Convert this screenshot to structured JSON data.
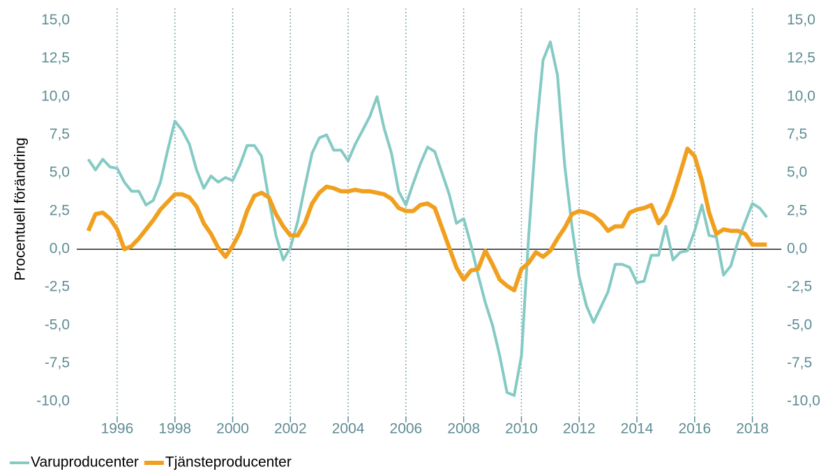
{
  "chart_data": {
    "type": "line",
    "y_label": "Procentuell förändring",
    "x": [
      1995,
      1995.25,
      1995.5,
      1995.75,
      1996,
      1996.25,
      1996.5,
      1996.75,
      1997,
      1997.25,
      1997.5,
      1997.75,
      1998,
      1998.25,
      1998.5,
      1998.75,
      1999,
      1999.25,
      1999.5,
      1999.75,
      2000,
      2000.25,
      2000.5,
      2000.75,
      2001,
      2001.25,
      2001.5,
      2001.75,
      2002,
      2002.25,
      2002.5,
      2002.75,
      2003,
      2003.25,
      2003.5,
      2003.75,
      2004,
      2004.25,
      2004.5,
      2004.75,
      2005,
      2005.25,
      2005.5,
      2005.75,
      2006,
      2006.25,
      2006.5,
      2006.75,
      2007,
      2007.25,
      2007.5,
      2007.75,
      2008,
      2008.25,
      2008.5,
      2008.75,
      2009,
      2009.25,
      2009.5,
      2009.75,
      2010,
      2010.25,
      2010.5,
      2010.75,
      2011,
      2011.25,
      2011.5,
      2011.75,
      2012,
      2012.25,
      2012.5,
      2012.75,
      2013,
      2013.25,
      2013.5,
      2013.75,
      2014,
      2014.25,
      2014.5,
      2014.75,
      2015,
      2015.25,
      2015.5,
      2015.75,
      2016,
      2016.25,
      2016.5,
      2016.75,
      2017,
      2017.25,
      2017.5,
      2017.75,
      2018,
      2018.25,
      2018.5
    ],
    "series": [
      {
        "name": "Varuproducenter",
        "color": "#85cac4",
        "width": 4,
        "values": [
          5.9,
          5.2,
          5.9,
          5.4,
          5.3,
          4.4,
          3.8,
          3.8,
          2.9,
          3.2,
          4.4,
          6.5,
          8.4,
          7.8,
          6.9,
          5.2,
          4.0,
          4.8,
          4.4,
          4.7,
          4.5,
          5.5,
          6.8,
          6.8,
          6.1,
          3.3,
          0.9,
          -0.7,
          0.1,
          1.8,
          4.1,
          6.3,
          7.3,
          7.5,
          6.5,
          6.5,
          5.8,
          6.9,
          7.8,
          8.7,
          10.0,
          7.9,
          6.3,
          3.8,
          2.9,
          4.3,
          5.6,
          6.7,
          6.4,
          5.0,
          3.6,
          1.7,
          2.0,
          0.3,
          -1.7,
          -3.5,
          -5.0,
          -7.0,
          -9.4,
          -9.6,
          -7.0,
          0.8,
          7.5,
          12.4,
          13.6,
          11.4,
          5.5,
          1.5,
          -1.8,
          -3.7,
          -4.8,
          -3.8,
          -2.8,
          -1.0,
          -1.0,
          -1.2,
          -2.2,
          -2.1,
          -0.4,
          -0.4,
          1.5,
          -0.7,
          -0.2,
          -0.1,
          1.2,
          2.9,
          0.9,
          0.8,
          -1.7,
          -1.1,
          0.5,
          1.8,
          3.0,
          2.7,
          2.1
        ]
      },
      {
        "name": "Tjänsteproducenter",
        "color": "#f0a01e",
        "width": 6,
        "values": [
          1.2,
          2.3,
          2.4,
          2.0,
          1.3,
          0.0,
          0.2,
          0.7,
          1.3,
          1.9,
          2.6,
          3.1,
          3.6,
          3.6,
          3.4,
          2.8,
          1.7,
          1.0,
          0.1,
          -0.5,
          0.2,
          1.1,
          2.5,
          3.5,
          3.7,
          3.4,
          2.3,
          1.5,
          0.9,
          0.9,
          1.7,
          3.0,
          3.7,
          4.1,
          4.0,
          3.8,
          3.8,
          3.9,
          3.8,
          3.8,
          3.7,
          3.6,
          3.3,
          2.7,
          2.5,
          2.5,
          2.9,
          3.0,
          2.7,
          1.4,
          0.1,
          -1.2,
          -2.0,
          -1.4,
          -1.3,
          -0.1,
          -1.0,
          -2.0,
          -2.4,
          -2.7,
          -1.3,
          -0.9,
          -0.2,
          -0.5,
          -0.1,
          0.7,
          1.4,
          2.3,
          2.5,
          2.4,
          2.2,
          1.8,
          1.2,
          1.5,
          1.5,
          2.4,
          2.6,
          2.7,
          2.9,
          1.7,
          2.3,
          3.5,
          5.0,
          6.6,
          6.1,
          4.5,
          2.4,
          1.0,
          1.3,
          1.2,
          1.2,
          1.0,
          0.3,
          0.3,
          0.3
        ]
      }
    ],
    "xlim": [
      1994.6,
      2019
    ],
    "xticks": [
      1996,
      1998,
      2000,
      2002,
      2004,
      2006,
      2008,
      2010,
      2012,
      2014,
      2016,
      2018
    ],
    "ylim": [
      -11,
      15.8
    ],
    "yticks": [
      {
        "value": 15,
        "label": "15,0"
      },
      {
        "value": 12.5,
        "label": "12,5"
      },
      {
        "value": 10,
        "label": "10,0"
      },
      {
        "value": 7.5,
        "label": "7,5"
      },
      {
        "value": 5,
        "label": "5,0"
      },
      {
        "value": 2.5,
        "label": "2,5"
      },
      {
        "value": 0,
        "label": "0,0"
      },
      {
        "value": -2.5,
        "label": "-2,5"
      },
      {
        "value": -5,
        "label": "-5,0"
      },
      {
        "value": -7.5,
        "label": "-7,5"
      },
      {
        "value": -10,
        "label": "-10,0"
      }
    ],
    "y2lim": [
      -11,
      15.8
    ],
    "y2ticks": [
      {
        "value": 15,
        "label": "15,0"
      },
      {
        "value": 12.5,
        "label": "12,5"
      },
      {
        "value": 10,
        "label": "10,0"
      },
      {
        "value": 7.5,
        "label": "7,5"
      },
      {
        "value": 5,
        "label": "5,0"
      },
      {
        "value": 2.5,
        "label": "2,5"
      },
      {
        "value": 0,
        "label": "0,0"
      },
      {
        "value": -2.5,
        "label": "-2,5"
      },
      {
        "value": -5,
        "label": "-5,0"
      },
      {
        "value": -7.5,
        "label": "-7,5"
      },
      {
        "value": -10,
        "label": "-10,0"
      }
    ],
    "grid": true,
    "legend": "bottom-left",
    "tick_color": "#5e8c94"
  }
}
